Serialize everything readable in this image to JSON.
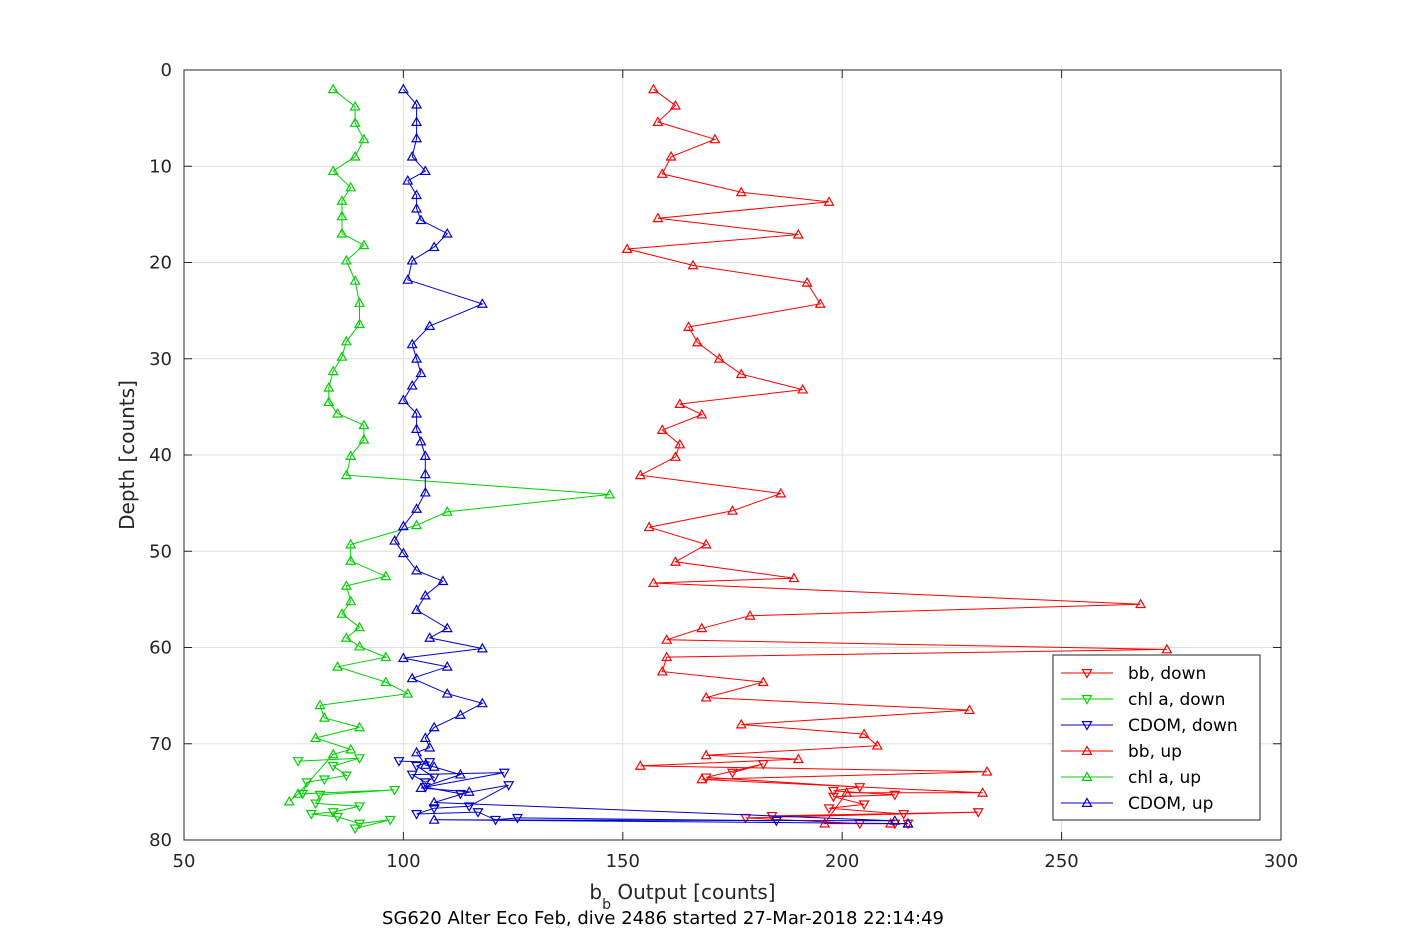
{
  "chart_data": {
    "type": "line",
    "xlabel_main": "b",
    "xlabel_sub": "b",
    "xlabel_rest": " Output [counts]",
    "ylabel": "Depth [counts]",
    "caption": "SG620 Alter Eco Feb, dive 2486 started 27-Mar-2018 22:14:49",
    "xlim": [
      50,
      300
    ],
    "ylim": [
      0,
      80
    ],
    "y_reversed": true,
    "grid": true,
    "legend_position": "bottom-right",
    "xticks": [
      50,
      100,
      150,
      200,
      250,
      300
    ],
    "yticks": [
      0,
      10,
      20,
      30,
      40,
      50,
      60,
      70,
      80
    ],
    "series": [
      {
        "name": "bb, down",
        "color": "#ff0000",
        "marker": "triangle-down",
        "points": [
          [
            175,
            73
          ],
          [
            182,
            72.1
          ],
          [
            169,
            73.5
          ],
          [
            204,
            74.5
          ],
          [
            198,
            74.9
          ],
          [
            212,
            75.3
          ],
          [
            198,
            75.5
          ],
          [
            205,
            76.3
          ],
          [
            197,
            76.7
          ],
          [
            214,
            77.3
          ],
          [
            184,
            77.5
          ],
          [
            231,
            77.1
          ],
          [
            178,
            77.7
          ],
          [
            204,
            78.3
          ],
          [
            212,
            78.3
          ],
          [
            215,
            78.3
          ]
        ]
      },
      {
        "name": "chl a, down",
        "color": "#00d000",
        "marker": "triangle-down",
        "points": [
          [
            76,
            71.8
          ],
          [
            90,
            71.5
          ],
          [
            84,
            72.3
          ],
          [
            87,
            73.3
          ],
          [
            82,
            73.7
          ],
          [
            78,
            74
          ],
          [
            77,
            75.2
          ],
          [
            98,
            74.8
          ],
          [
            81,
            75.3
          ],
          [
            80,
            76.2
          ],
          [
            90,
            76.5
          ],
          [
            84,
            77.1
          ],
          [
            79,
            77.3
          ],
          [
            85,
            77.6
          ],
          [
            90,
            78.3
          ],
          [
            97,
            77.9
          ],
          [
            89,
            78.8
          ]
        ]
      },
      {
        "name": "CDOM, down",
        "color": "#0000cc",
        "marker": "triangle-down",
        "points": [
          [
            99,
            71.8
          ],
          [
            106,
            71.9
          ],
          [
            103,
            72.3
          ],
          [
            107,
            73.5
          ],
          [
            105,
            74
          ],
          [
            102,
            73.2
          ],
          [
            123,
            73
          ],
          [
            105,
            74.5
          ],
          [
            113,
            75.2
          ],
          [
            124,
            74.3
          ],
          [
            115,
            76.5
          ],
          [
            107,
            76.7
          ],
          [
            103,
            77.3
          ],
          [
            117,
            77.1
          ],
          [
            121,
            77.9
          ],
          [
            126,
            77.7
          ],
          [
            185,
            78
          ]
        ]
      },
      {
        "name": "bb, up",
        "color": "#ff0000",
        "marker": "triangle-up",
        "points": [
          [
            157,
            2
          ],
          [
            162,
            3.7
          ],
          [
            158,
            5.4
          ],
          [
            171,
            7.2
          ],
          [
            161,
            9
          ],
          [
            159,
            10.8
          ],
          [
            177,
            12.7
          ],
          [
            197,
            13.7
          ],
          [
            158,
            15.4
          ],
          [
            190,
            17.1
          ],
          [
            151,
            18.6
          ],
          [
            166,
            20.3
          ],
          [
            192,
            22.1
          ],
          [
            195,
            24.3
          ],
          [
            165,
            26.7
          ],
          [
            167,
            28.3
          ],
          [
            172,
            30
          ],
          [
            177,
            31.6
          ],
          [
            191,
            33.2
          ],
          [
            163,
            34.7
          ],
          [
            168,
            35.8
          ],
          [
            159,
            37.4
          ],
          [
            163,
            38.9
          ],
          [
            162,
            40.2
          ],
          [
            154,
            42.1
          ],
          [
            186,
            44
          ],
          [
            175,
            45.8
          ],
          [
            156,
            47.5
          ],
          [
            169,
            49.3
          ],
          [
            162,
            51.1
          ],
          [
            189,
            52.8
          ],
          [
            157,
            53.3
          ],
          [
            268,
            55.5
          ],
          [
            179,
            56.7
          ],
          [
            168,
            58
          ],
          [
            160,
            59.2
          ],
          [
            274,
            60.2
          ],
          [
            160,
            61
          ],
          [
            159,
            62.5
          ],
          [
            182,
            63.6
          ],
          [
            169,
            65.2
          ],
          [
            229,
            66.5
          ],
          [
            177,
            68
          ],
          [
            205,
            69
          ],
          [
            208,
            70.2
          ],
          [
            169,
            71.2
          ],
          [
            190,
            71.6
          ],
          [
            154,
            72.3
          ],
          [
            233,
            72.9
          ],
          [
            168,
            73.7
          ],
          [
            232,
            75.1
          ],
          [
            201,
            75.1
          ],
          [
            196,
            78.3
          ],
          [
            211,
            78.3
          ],
          [
            215,
            78.3
          ]
        ]
      },
      {
        "name": "chl a, up",
        "color": "#00d000",
        "marker": "triangle-up",
        "points": [
          [
            84,
            2
          ],
          [
            89,
            3.8
          ],
          [
            89,
            5.5
          ],
          [
            91,
            7.2
          ],
          [
            89,
            9
          ],
          [
            84,
            10.5
          ],
          [
            88,
            12.2
          ],
          [
            86,
            13.6
          ],
          [
            86,
            15.2
          ],
          [
            86,
            17
          ],
          [
            91,
            18.2
          ],
          [
            87,
            19.8
          ],
          [
            89,
            21.9
          ],
          [
            90,
            24.2
          ],
          [
            90,
            26.4
          ],
          [
            87,
            28.2
          ],
          [
            86,
            29.8
          ],
          [
            84,
            31.3
          ],
          [
            83,
            33
          ],
          [
            83,
            34.5
          ],
          [
            85,
            35.7
          ],
          [
            91,
            36.9
          ],
          [
            91,
            38.4
          ],
          [
            88,
            40.1
          ],
          [
            87,
            42.1
          ],
          [
            147,
            44.1
          ],
          [
            110,
            45.9
          ],
          [
            103,
            47.3
          ],
          [
            88,
            49.3
          ],
          [
            88,
            51
          ],
          [
            96,
            52.6
          ],
          [
            87,
            53.6
          ],
          [
            88,
            55.2
          ],
          [
            86,
            56.5
          ],
          [
            90,
            57.9
          ],
          [
            87,
            59
          ],
          [
            90,
            59.9
          ],
          [
            96,
            61
          ],
          [
            85,
            62
          ],
          [
            96,
            63.6
          ],
          [
            101,
            64.8
          ],
          [
            81,
            66
          ],
          [
            82,
            67.3
          ],
          [
            90,
            68.3
          ],
          [
            80,
            69.4
          ],
          [
            88,
            70.6
          ],
          [
            84,
            71.1
          ],
          [
            76,
            75.2
          ],
          [
            74,
            76
          ]
        ]
      },
      {
        "name": "CDOM, up",
        "color": "#0000cc",
        "marker": "triangle-up",
        "points": [
          [
            100,
            2
          ],
          [
            103,
            3.6
          ],
          [
            103,
            5.4
          ],
          [
            103,
            7.1
          ],
          [
            102,
            9
          ],
          [
            105,
            10.5
          ],
          [
            101,
            11.5
          ],
          [
            103,
            13
          ],
          [
            103,
            14.4
          ],
          [
            104,
            15.6
          ],
          [
            110,
            17
          ],
          [
            107,
            18.4
          ],
          [
            102,
            19.8
          ],
          [
            101,
            21.8
          ],
          [
            118,
            24.3
          ],
          [
            106,
            26.6
          ],
          [
            102,
            28.5
          ],
          [
            103,
            30
          ],
          [
            104,
            31.5
          ],
          [
            102,
            32.8
          ],
          [
            100,
            34.3
          ],
          [
            103,
            35.7
          ],
          [
            103,
            37.3
          ],
          [
            104,
            38.6
          ],
          [
            105,
            40.1
          ],
          [
            105,
            42
          ],
          [
            105,
            43.9
          ],
          [
            103,
            45.6
          ],
          [
            100,
            47.4
          ],
          [
            98,
            48.9
          ],
          [
            100,
            50.2
          ],
          [
            103,
            52
          ],
          [
            109,
            53.1
          ],
          [
            105,
            54.6
          ],
          [
            103,
            56.1
          ],
          [
            110,
            58
          ],
          [
            106,
            59
          ],
          [
            118,
            60.1
          ],
          [
            100,
            61.1
          ],
          [
            110,
            62
          ],
          [
            102,
            63.2
          ],
          [
            110,
            64.8
          ],
          [
            118,
            65.8
          ],
          [
            113,
            67
          ],
          [
            107,
            68.3
          ],
          [
            105,
            69.4
          ],
          [
            106,
            70.4
          ],
          [
            103,
            70.9
          ],
          [
            105,
            72.2
          ],
          [
            107,
            72.4
          ],
          [
            113,
            73.2
          ],
          [
            104,
            74.6
          ],
          [
            115,
            75
          ],
          [
            107,
            76.1
          ],
          [
            212,
            78
          ],
          [
            107,
            77.9
          ],
          [
            215,
            78.3
          ]
        ]
      }
    ]
  }
}
